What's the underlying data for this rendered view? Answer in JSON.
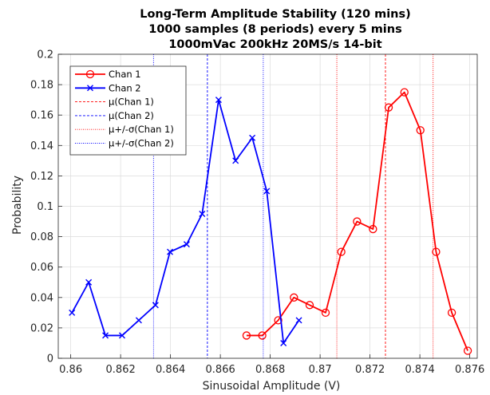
{
  "chart_data": {
    "type": "line",
    "title": [
      "Long-Term Amplitude Stability (120 mins)",
      "1000 samples (8 periods) every 5 mins",
      "1000mVac 200kHz 20MS/s 14-bit"
    ],
    "xlabel": "Sinusoidal Amplitude (V)",
    "ylabel": "Probability",
    "xlim": [
      0.8595,
      0.8763
    ],
    "ylim": [
      0,
      0.2
    ],
    "xticks": [
      "0.86",
      "0.862",
      "0.864",
      "0.866",
      "0.868",
      "0.87",
      "0.872",
      "0.874",
      "0.876"
    ],
    "yticks": [
      "0",
      "0.02",
      "0.04",
      "0.06",
      "0.08",
      "0.1",
      "0.12",
      "0.14",
      "0.16",
      "0.18",
      "0.2"
    ],
    "grid": true,
    "legend_position": "top-left",
    "series": [
      {
        "name": "Chan 1",
        "color": "#ff0000",
        "marker": "circle",
        "x": [
          0.86705,
          0.86768,
          0.86832,
          0.86895,
          0.86958,
          0.87022,
          0.87085,
          0.87148,
          0.87212,
          0.87275,
          0.87338,
          0.87402,
          0.87465,
          0.87528,
          0.87592
        ],
        "y": [
          0.015,
          0.015,
          0.025,
          0.04,
          0.035,
          0.03,
          0.07,
          0.09,
          0.085,
          0.165,
          0.175,
          0.15,
          0.07,
          0.03,
          0.005
        ]
      },
      {
        "name": "Chan 2",
        "color": "#0000ff",
        "marker": "x",
        "x": [
          0.86005,
          0.86072,
          0.86139,
          0.86206,
          0.86273,
          0.8634,
          0.86398,
          0.86465,
          0.86527,
          0.86593,
          0.86661,
          0.86728,
          0.86786,
          0.86853,
          0.86915
        ],
        "y": [
          0.03,
          0.05,
          0.015,
          0.015,
          0.025,
          0.035,
          0.07,
          0.075,
          0.095,
          0.17,
          0.13,
          0.145,
          0.11,
          0.01,
          0.025
        ]
      }
    ],
    "vlines": [
      {
        "name": "μ(Chan 1)",
        "x": 0.87262,
        "color": "#ff0000",
        "style": "dashed"
      },
      {
        "name": "μ(Chan 2)",
        "x": 0.86548,
        "color": "#0000ff",
        "style": "dashed"
      },
      {
        "name": "μ+/-σ(Chan 1)",
        "x": 0.87067,
        "color": "#ff0000",
        "style": "dotted"
      },
      {
        "name": "μ+/-σ(Chan 1)",
        "x": 0.87453,
        "color": "#ff0000",
        "style": "dotted"
      },
      {
        "name": "μ+/-σ(Chan 2)",
        "x": 0.86332,
        "color": "#0000ff",
        "style": "dotted"
      },
      {
        "name": "μ+/-σ(Chan 2)",
        "x": 0.86772,
        "color": "#0000ff",
        "style": "dotted"
      }
    ],
    "legend": [
      {
        "label": "Chan 1",
        "color": "#ff0000",
        "kind": "line-circle"
      },
      {
        "label": "Chan 2",
        "color": "#0000ff",
        "kind": "line-x"
      },
      {
        "label": "μ(Chan 1)",
        "color": "#ff0000",
        "kind": "dashed"
      },
      {
        "label": "μ(Chan 2)",
        "color": "#0000ff",
        "kind": "dashed"
      },
      {
        "label": "μ+/-σ(Chan 1)",
        "color": "#ff0000",
        "kind": "dotted"
      },
      {
        "label": "μ+/-σ(Chan 2)",
        "color": "#0000ff",
        "kind": "dotted"
      }
    ]
  }
}
